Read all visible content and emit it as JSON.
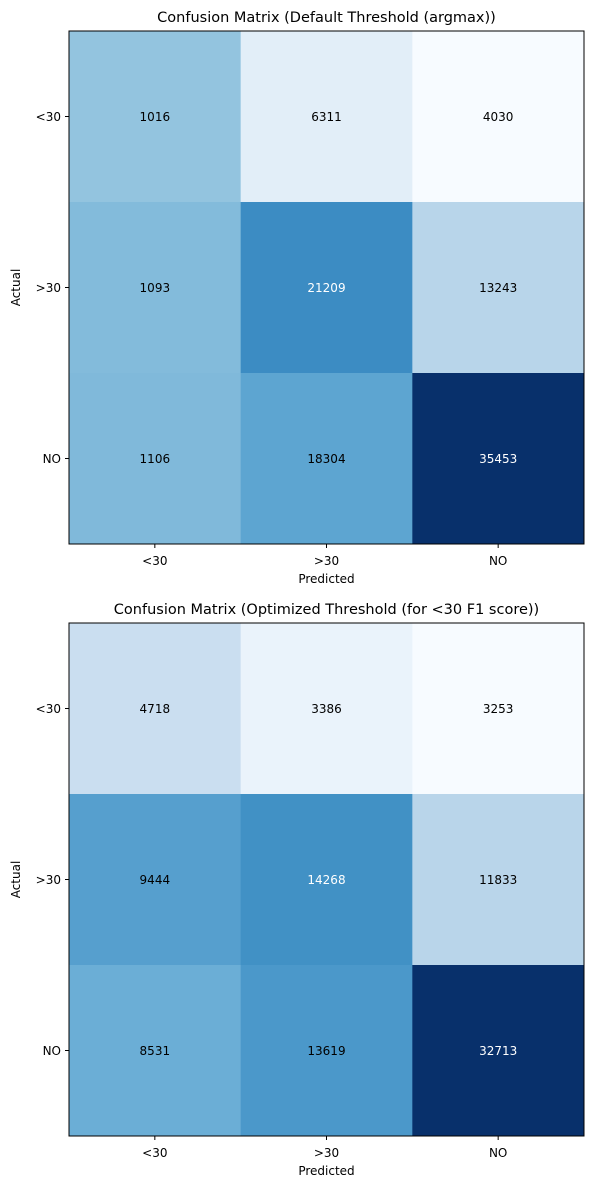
{
  "chart_data": [
    {
      "type": "heatmap",
      "title": "Confusion Matrix (Default Threshold (argmax))",
      "xlabel": "Predicted",
      "ylabel": "Actual",
      "x_categories": [
        "<30",
        ">30",
        "NO"
      ],
      "y_categories": [
        "<30",
        ">30",
        "NO"
      ],
      "values": [
        [
          1016,
          6311,
          4030
        ],
        [
          1093,
          21209,
          13243
        ],
        [
          1106,
          18304,
          35453
        ]
      ],
      "normalization": "column",
      "colormap": "Blues",
      "grid": false
    },
    {
      "type": "heatmap",
      "title": "Confusion Matrix (Optimized Threshold (for <30 F1 score))",
      "xlabel": "Predicted",
      "ylabel": "Actual",
      "x_categories": [
        "<30",
        ">30",
        "NO"
      ],
      "y_categories": [
        "<30",
        ">30",
        "NO"
      ],
      "values": [
        [
          4718,
          3386,
          3253
        ],
        [
          9444,
          14268,
          11833
        ],
        [
          8531,
          13619,
          32713
        ]
      ],
      "normalization": "column",
      "colormap": "Blues",
      "grid": false
    }
  ]
}
